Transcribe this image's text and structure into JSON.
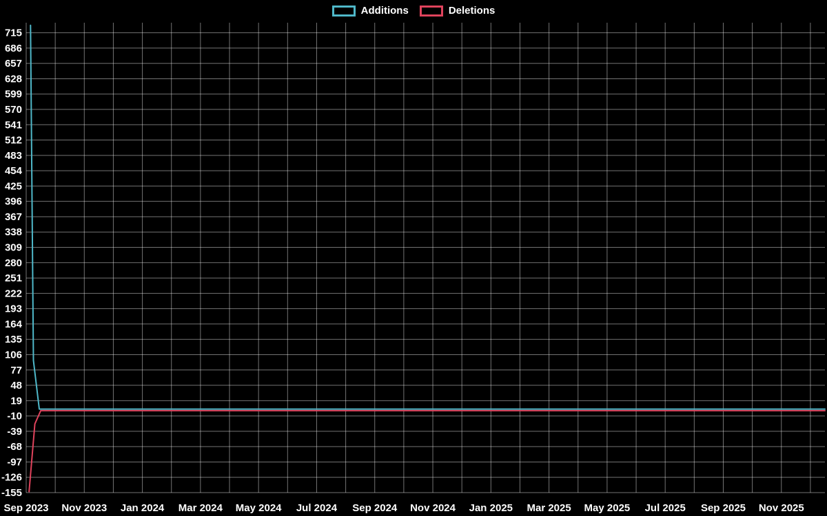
{
  "chart_data": {
    "type": "line",
    "title": "",
    "legend": [
      "Additions",
      "Deletions"
    ],
    "background": "#000000",
    "text_color": "#ffffff",
    "grid_color": "rgba(255,255,255,0.45)",
    "x_ticks": [
      "Sep 2023",
      "Nov 2023",
      "Jan 2024",
      "Mar 2024",
      "May 2024",
      "Jul 2024",
      "Sep 2024",
      "Nov 2024",
      "Jan 2025",
      "Mar 2025",
      "May 2025",
      "Jul 2025",
      "Sep 2025",
      "Nov 2025"
    ],
    "x_tick_months": [
      0,
      2,
      4,
      6,
      8,
      10,
      12,
      14,
      16,
      18,
      20,
      22,
      24,
      26
    ],
    "months_total": 27.5,
    "y_ticks": [
      715,
      686,
      657,
      628,
      599,
      570,
      541,
      512,
      483,
      454,
      425,
      396,
      367,
      338,
      309,
      280,
      251,
      222,
      193,
      164,
      135,
      106,
      77,
      48,
      19,
      -10,
      -39,
      -68,
      -97,
      -126,
      -155
    ],
    "ylim": [
      -155,
      734
    ],
    "series": [
      {
        "name": "Additions",
        "color": "#4fb8c9",
        "points": [
          [
            0.15,
            729
          ],
          [
            0.25,
            95
          ],
          [
            0.45,
            3
          ],
          [
            27.5,
            3
          ]
        ]
      },
      {
        "name": "Deletions",
        "color": "#e0435c",
        "points": [
          [
            0.1,
            -153
          ],
          [
            0.3,
            -25
          ],
          [
            0.5,
            0
          ],
          [
            27.5,
            0
          ]
        ]
      }
    ]
  }
}
